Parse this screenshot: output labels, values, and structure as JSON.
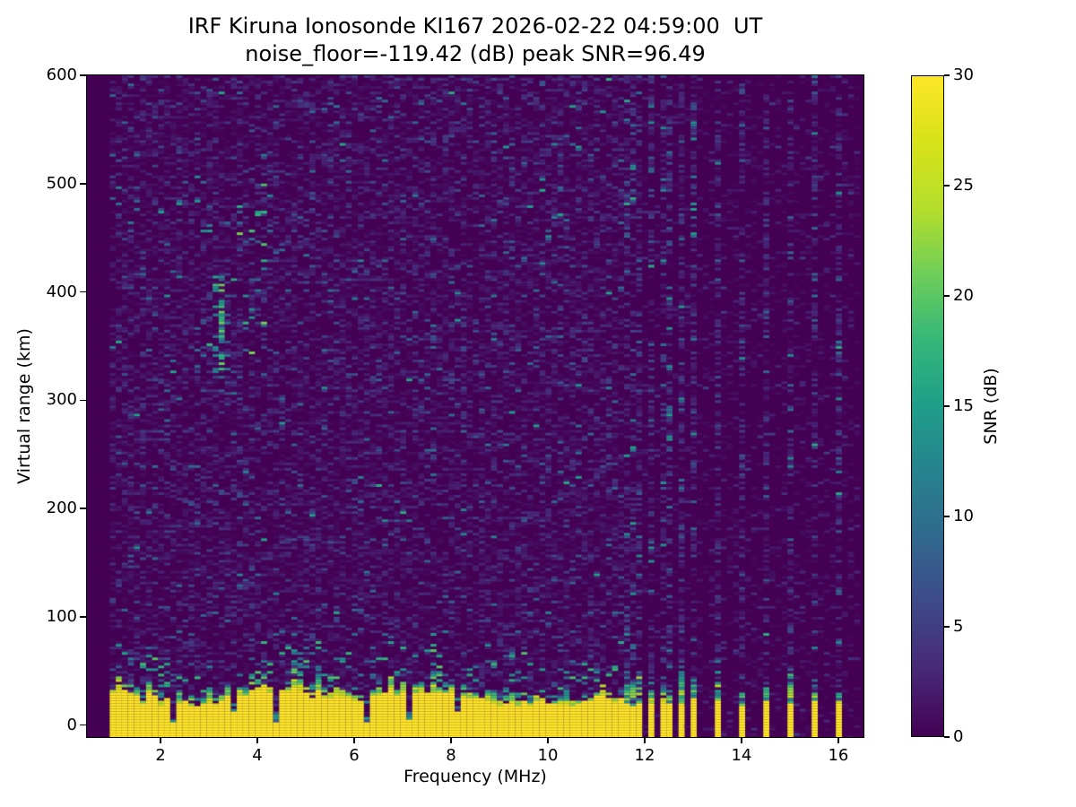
{
  "figure": {
    "background": "#ffffff"
  },
  "chart_data": {
    "type": "heatmap",
    "title": "IRF Kiruna Ionosonde KI167 2026-02-22 04:59:00  UT",
    "subtitle": "noise_floor=-119.42 (dB) peak SNR=96.49",
    "station": "KI167",
    "timestamp_ut": "2026-02-22 04:59:00",
    "noise_floor_db": -119.42,
    "peak_snr_db": 96.49,
    "xlabel": "Frequency (MHz)",
    "ylabel": "Virtual range (km)",
    "colorbar_label": "SNR (dB)",
    "xlim": [
      0.48,
      16.52
    ],
    "ylim": [
      -11,
      600
    ],
    "clim": [
      0,
      30
    ],
    "x_ticks": [
      2,
      4,
      6,
      8,
      10,
      12,
      14,
      16
    ],
    "y_ticks": [
      0,
      100,
      200,
      300,
      400,
      500,
      600
    ],
    "colorbar_ticks": [
      0,
      5,
      10,
      15,
      20,
      25,
      30
    ],
    "colormap": "viridis",
    "colormap_stops": [
      [
        0.0,
        "#440154"
      ],
      [
        0.1,
        "#482878"
      ],
      [
        0.2,
        "#3e4989"
      ],
      [
        0.3,
        "#31688e"
      ],
      [
        0.4,
        "#26828e"
      ],
      [
        0.5,
        "#1f9e89"
      ],
      [
        0.6,
        "#35b779"
      ],
      [
        0.7,
        "#6ece58"
      ],
      [
        0.8,
        "#b5de2b"
      ],
      [
        0.9,
        "#d8e219"
      ],
      [
        1.0,
        "#fde725"
      ]
    ],
    "render": {
      "seed": 167,
      "freq_bin_mhz": 0.125,
      "range_bin_km": 2.5,
      "data_freq_range": [
        0.95,
        16.45
      ],
      "noise": {
        "left_density": 0.62,
        "left_mean_db": 1.8,
        "right_density": 0.28,
        "right_mean_db": 1.0,
        "teal_speck_prob": 0.006
      },
      "ground_echo": {
        "freq_start": 0.95,
        "freq_end": 11.63,
        "top_km_mean": 25,
        "top_km_jitter": 8,
        "transition_km_mean": 13,
        "value_db": 30
      },
      "notches": [
        {
          "freq": 2.3,
          "floor_km": 2
        },
        {
          "freq": 3.54,
          "floor_km": 12
        },
        {
          "freq": 4.33,
          "floor_km": 2
        },
        {
          "freq": 6.22,
          "floor_km": 2
        },
        {
          "freq": 7.11,
          "floor_km": 6
        },
        {
          "freq": 8.19,
          "floor_km": 12
        },
        {
          "freq": 9.98,
          "floor_km": 20
        }
      ],
      "rfi_stripes": [
        {
          "freq": 11.7
        },
        {
          "freq": 11.93
        },
        {
          "freq": 12.15
        },
        {
          "freq": 12.35
        },
        {
          "freq": 12.57
        },
        {
          "freq": 12.8
        },
        {
          "freq": 13.0
        },
        {
          "freq": 13.46
        },
        {
          "freq": 13.96
        },
        {
          "freq": 14.48
        },
        {
          "freq": 14.98
        },
        {
          "freq": 15.5
        },
        {
          "freq": 16.0
        }
      ],
      "echo_clusters": [
        {
          "f_center": 3.3,
          "f_halfwidth": 0.3,
          "r_min": 318,
          "r_max": 418,
          "density": 0.34,
          "min_db": 8,
          "max_db": 21
        },
        {
          "f_center": 4.0,
          "f_halfwidth": 0.28,
          "r_min": 335,
          "r_max": 500,
          "density": 0.3,
          "min_db": 8,
          "max_db": 22
        }
      ]
    }
  }
}
